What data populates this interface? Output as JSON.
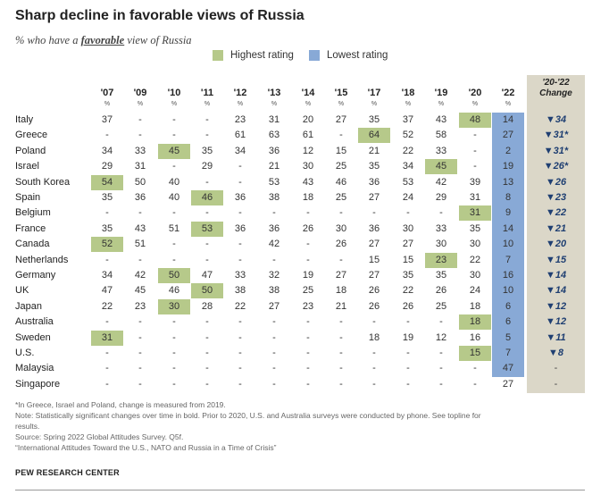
{
  "title": "Sharp decline in favorable views of Russia",
  "subtitle": {
    "pre": "% who have a ",
    "emphasis": "favorable",
    "post": " view of Russia"
  },
  "legend": {
    "highest": {
      "label": "Highest rating",
      "color": "#b6c98a"
    },
    "lowest": {
      "label": "Lowest rating",
      "color": "#88a9d6"
    }
  },
  "change_header": [
    "'20-'22",
    "Change"
  ],
  "chart_data": {
    "type": "table",
    "columns": [
      "'07",
      "'09",
      "'10",
      "'11",
      "'12",
      "'13",
      "'14",
      "'15",
      "'17",
      "'18",
      "'19",
      "'20",
      "'22"
    ],
    "unit_row": [
      "%",
      "%",
      "%",
      "%",
      "%",
      "%",
      "%",
      "%",
      "%",
      "%",
      "%",
      "%",
      "%"
    ],
    "rows": [
      {
        "country": "Italy",
        "values": [
          "37",
          "-",
          "-",
          "-",
          "23",
          "31",
          "20",
          "27",
          "35",
          "37",
          "43",
          "48",
          "14"
        ],
        "highest": 11,
        "change": "▼34"
      },
      {
        "country": "Greece",
        "values": [
          "-",
          "-",
          "-",
          "-",
          "61",
          "63",
          "61",
          "-",
          "64",
          "52",
          "58",
          "-",
          "27"
        ],
        "highest": 8,
        "change": "▼31*"
      },
      {
        "country": "Poland",
        "values": [
          "34",
          "33",
          "45",
          "35",
          "34",
          "36",
          "12",
          "15",
          "21",
          "22",
          "33",
          "-",
          "2"
        ],
        "highest": 2,
        "change": "▼31*"
      },
      {
        "country": "Israel",
        "values": [
          "29",
          "31",
          "-",
          "29",
          "-",
          "21",
          "30",
          "25",
          "35",
          "34",
          "45",
          "-",
          "19"
        ],
        "highest": 10,
        "change": "▼26*"
      },
      {
        "country": "South Korea",
        "values": [
          "54",
          "50",
          "40",
          "-",
          "-",
          "53",
          "43",
          "46",
          "36",
          "53",
          "42",
          "39",
          "13"
        ],
        "highest": 0,
        "change": "▼26"
      },
      {
        "country": "Spain",
        "values": [
          "35",
          "36",
          "40",
          "46",
          "36",
          "38",
          "18",
          "25",
          "27",
          "24",
          "29",
          "31",
          "8"
        ],
        "highest": 3,
        "change": "▼23"
      },
      {
        "country": "Belgium",
        "values": [
          "-",
          "-",
          "-",
          "-",
          "-",
          "-",
          "-",
          "-",
          "-",
          "-",
          "-",
          "31",
          "9"
        ],
        "highest": 11,
        "change": "▼22"
      },
      {
        "country": "France",
        "values": [
          "35",
          "43",
          "51",
          "53",
          "36",
          "36",
          "26",
          "30",
          "36",
          "30",
          "33",
          "35",
          "14"
        ],
        "highest": 3,
        "change": "▼21"
      },
      {
        "country": "Canada",
        "values": [
          "52",
          "51",
          "-",
          "-",
          "-",
          "42",
          "-",
          "26",
          "27",
          "27",
          "30",
          "30",
          "10"
        ],
        "highest": 0,
        "change": "▼20"
      },
      {
        "country": "Netherlands",
        "values": [
          "-",
          "-",
          "-",
          "-",
          "-",
          "-",
          "-",
          "-",
          "15",
          "15",
          "23",
          "22",
          "7"
        ],
        "highest": 10,
        "change": "▼15"
      },
      {
        "country": "Germany",
        "values": [
          "34",
          "42",
          "50",
          "47",
          "33",
          "32",
          "19",
          "27",
          "27",
          "35",
          "35",
          "30",
          "16"
        ],
        "highest": 2,
        "change": "▼14"
      },
      {
        "country": "UK",
        "values": [
          "47",
          "45",
          "46",
          "50",
          "38",
          "38",
          "25",
          "18",
          "26",
          "22",
          "26",
          "24",
          "10"
        ],
        "highest": 3,
        "change": "▼14"
      },
      {
        "country": "Japan",
        "values": [
          "22",
          "23",
          "30",
          "28",
          "22",
          "27",
          "23",
          "21",
          "26",
          "26",
          "25",
          "18",
          "6"
        ],
        "highest": 2,
        "change": "▼12"
      },
      {
        "country": "Australia",
        "values": [
          "-",
          "-",
          "-",
          "-",
          "-",
          "-",
          "-",
          "-",
          "-",
          "-",
          "-",
          "18",
          "6"
        ],
        "highest": 11,
        "change": "▼12"
      },
      {
        "country": "Sweden",
        "values": [
          "31",
          "-",
          "-",
          "-",
          "-",
          "-",
          "-",
          "-",
          "18",
          "19",
          "12",
          "16",
          "5"
        ],
        "highest": 0,
        "change": "▼11"
      },
      {
        "country": "U.S.",
        "values": [
          "-",
          "-",
          "-",
          "-",
          "-",
          "-",
          "-",
          "-",
          "-",
          "-",
          "-",
          "15",
          "7"
        ],
        "highest": 11,
        "change": "▼8"
      },
      {
        "country": "Malaysia",
        "values": [
          "-",
          "-",
          "-",
          "-",
          "-",
          "-",
          "-",
          "-",
          "-",
          "-",
          "-",
          "-",
          "47"
        ],
        "highest": null,
        "change": "-"
      },
      {
        "country": "Singapore",
        "values": [
          "-",
          "-",
          "-",
          "-",
          "-",
          "-",
          "-",
          "-",
          "-",
          "-",
          "-",
          "-",
          "27"
        ],
        "highest": null,
        "change": "-"
      }
    ]
  },
  "notes": [
    "*In Greece, Israel and Poland, change is measured from 2019.",
    "Note: Statistically significant changes over time in bold. Prior to 2020, U.S. and Australia surveys were conducted by phone. See topline for",
    "results.",
    "Source: Spring 2022 Global Attitudes Survey. Q5f.",
    "“International Attitudes Toward the U.S., NATO and Russia in a Time of Crisis”"
  ],
  "brand": "PEW RESEARCH CENTER"
}
